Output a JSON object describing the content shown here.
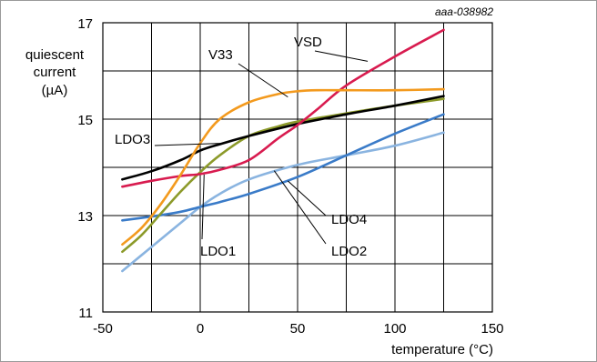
{
  "chart_data": {
    "type": "line",
    "figure_id": "aaa-038982",
    "xlabel": "temperature (°C)",
    "ylabel_lines": [
      "quiescent",
      "current",
      "(µA)"
    ],
    "xlim": [
      -50,
      150
    ],
    "ylim": [
      11,
      17
    ],
    "x_ticks": [
      -50,
      0,
      50,
      100,
      150
    ],
    "y_ticks": [
      11,
      13,
      15,
      17
    ],
    "grid": true,
    "x_grid": [
      -50,
      -25,
      0,
      25,
      50,
      75,
      100,
      125,
      150
    ],
    "y_grid": [
      11,
      12,
      13,
      14,
      15,
      16,
      17
    ],
    "x_range": [
      -40,
      125
    ],
    "series": [
      {
        "name": "LDO3",
        "color": "#000000",
        "x": [
          -40,
          -25,
          -10,
          0,
          10,
          25,
          50,
          75,
          100,
          125
        ],
        "y": [
          13.75,
          13.92,
          14.15,
          14.35,
          14.48,
          14.65,
          14.9,
          15.1,
          15.28,
          15.48
        ]
      },
      {
        "name": "VSD",
        "color": "#d81b4f",
        "x": [
          -40,
          -25,
          -10,
          0,
          10,
          25,
          40,
          50,
          60,
          75,
          100,
          125
        ],
        "y": [
          13.6,
          13.72,
          13.82,
          13.86,
          13.95,
          14.15,
          14.6,
          14.88,
          15.2,
          15.7,
          16.3,
          16.85
        ]
      },
      {
        "name": "V33",
        "color": "#f39a1e",
        "x": [
          -40,
          -30,
          -20,
          -10,
          0,
          10,
          25,
          40,
          50,
          60,
          75,
          100,
          125
        ],
        "y": [
          12.4,
          12.75,
          13.25,
          13.85,
          14.5,
          15.0,
          15.35,
          15.52,
          15.58,
          15.6,
          15.6,
          15.6,
          15.62
        ]
      },
      {
        "name": "LDO1",
        "color": "#8c9a2a",
        "x": [
          -40,
          -30,
          -20,
          -10,
          0,
          10,
          25,
          40,
          50,
          75,
          100,
          125
        ],
        "y": [
          12.25,
          12.6,
          13.05,
          13.5,
          13.9,
          14.25,
          14.65,
          14.85,
          14.95,
          15.12,
          15.28,
          15.42
        ]
      },
      {
        "name": "LDO4",
        "color": "#3a7bc8",
        "x": [
          -40,
          -25,
          -10,
          0,
          10,
          25,
          50,
          75,
          100,
          125
        ],
        "y": [
          12.9,
          12.98,
          13.08,
          13.18,
          13.28,
          13.45,
          13.8,
          14.25,
          14.7,
          15.1
        ]
      },
      {
        "name": "LDO2",
        "color": "#8ab4e0",
        "x": [
          -40,
          -25,
          -10,
          0,
          10,
          25,
          50,
          75,
          100,
          125
        ],
        "y": [
          11.85,
          12.35,
          12.85,
          13.18,
          13.45,
          13.75,
          14.05,
          14.25,
          14.45,
          14.72
        ]
      }
    ],
    "callouts": [
      {
        "text": "VSD",
        "series": "VSD",
        "x": 86,
        "y": 16.2
      },
      {
        "text": "V33",
        "series": "V33",
        "x": 45,
        "y": 15.46
      },
      {
        "text": "LDO3",
        "series": "LDO3",
        "x": 12,
        "y": 14.5
      },
      {
        "text": "LDO1",
        "series": "LDO1",
        "x": 2,
        "y": 13.85
      },
      {
        "text": "LDO4",
        "series": "LDO4",
        "x": 45,
        "y": 13.72
      },
      {
        "text": "LDO2",
        "series": "LDO2",
        "x": 38,
        "y": 13.93
      }
    ]
  }
}
